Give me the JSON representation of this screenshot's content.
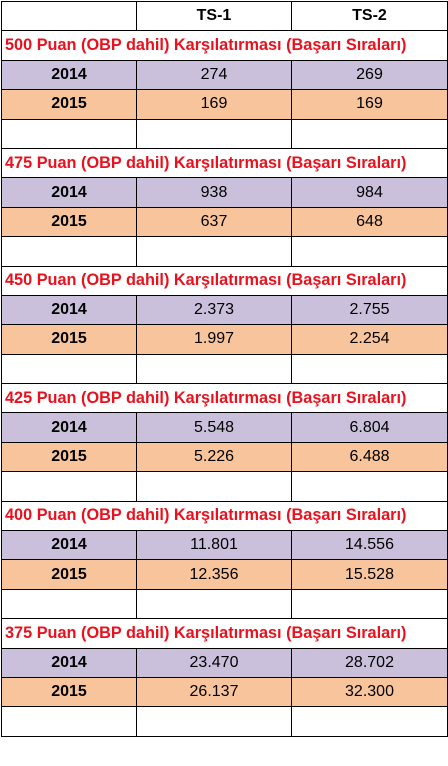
{
  "header": {
    "col1": "",
    "col2": "TS-1",
    "col3": "TS-2"
  },
  "sections": [
    {
      "title": "500 Puan (OBP dahil) Karşılatırması (Başarı Sıraları)",
      "rows": [
        {
          "year": "2014",
          "ts1": "274",
          "ts2": "269"
        },
        {
          "year": "2015",
          "ts1": "169",
          "ts2": "169"
        }
      ]
    },
    {
      "title": "475 Puan (OBP dahil) Karşılatırması  (Başarı Sıraları)",
      "rows": [
        {
          "year": "2014",
          "ts1": "938",
          "ts2": "984"
        },
        {
          "year": "2015",
          "ts1": "637",
          "ts2": "648"
        }
      ]
    },
    {
      "title": "450 Puan (OBP dahil) Karşılatırması  (Başarı Sıraları)",
      "rows": [
        {
          "year": "2014",
          "ts1": "2.373",
          "ts2": "2.755"
        },
        {
          "year": "2015",
          "ts1": "1.997",
          "ts2": "2.254"
        }
      ]
    },
    {
      "title": "425 Puan (OBP dahil) Karşılatırması  (Başarı Sıraları)",
      "rows": [
        {
          "year": "2014",
          "ts1": "5.548",
          "ts2": "6.804"
        },
        {
          "year": "2015",
          "ts1": "5.226",
          "ts2": "6.488"
        }
      ]
    },
    {
      "title": "400 Puan (OBP dahil) Karşılatırması  (Başarı Sıraları)",
      "rows": [
        {
          "year": "2014",
          "ts1": "11.801",
          "ts2": "14.556"
        },
        {
          "year": "2015",
          "ts1": "12.356",
          "ts2": "15.528"
        }
      ]
    },
    {
      "title": "375 Puan (OBP dahil) Karşılatırması  (Başarı Sıraları)",
      "rows": [
        {
          "year": "2014",
          "ts1": "23.470",
          "ts2": "28.702"
        },
        {
          "year": "2015",
          "ts1": "26.137",
          "ts2": "32.300"
        }
      ]
    }
  ],
  "colors": {
    "row_2014": "#cbc0dc",
    "row_2015": "#f8c49b",
    "title_text": "#e8121e"
  }
}
